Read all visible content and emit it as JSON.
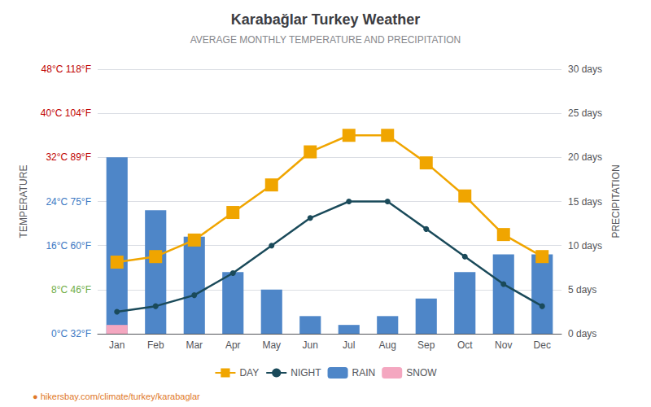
{
  "chart_data": {
    "type": "combo",
    "title": "Karabağlar Turkey Weather",
    "subtitle": "AVERAGE MONTHLY TEMPERATURE AND PRECIPITATION",
    "categories": [
      "Jan",
      "Feb",
      "Mar",
      "Apr",
      "May",
      "Jun",
      "Jul",
      "Aug",
      "Sep",
      "Oct",
      "Nov",
      "Dec"
    ],
    "series": [
      {
        "name": "DAY",
        "type": "line",
        "marker": "star",
        "color": "#f0a500",
        "values": [
          13,
          14,
          17,
          22,
          27,
          33,
          36,
          36,
          31,
          25,
          18,
          14
        ]
      },
      {
        "name": "NIGHT",
        "type": "line",
        "marker": "circle",
        "color": "#1a4a5a",
        "values": [
          4,
          5,
          7,
          11,
          16,
          21,
          24,
          24,
          19,
          14,
          9,
          5
        ]
      },
      {
        "name": "RAIN",
        "type": "bar",
        "axis": "y2",
        "color": "#4e86c8",
        "values": [
          20,
          14,
          11,
          7,
          5,
          2,
          1,
          2,
          4,
          7,
          9,
          9
        ]
      },
      {
        "name": "SNOW",
        "type": "bar",
        "axis": "y2",
        "color": "#f4a7c0",
        "values": [
          1,
          0,
          0,
          0,
          0,
          0,
          0,
          0,
          0,
          0,
          0,
          0
        ]
      }
    ],
    "ylabel": "TEMPERATURE",
    "y2label": "PRECIPITATION",
    "ylim": [
      0,
      48
    ],
    "yticks": [
      {
        "value": 0,
        "label": "0°C 32°F",
        "color": "#3b78c3"
      },
      {
        "value": 8,
        "label": "8°C 46°F",
        "color": "#70ad47"
      },
      {
        "value": 16,
        "label": "16°C 60°F",
        "color": "#3b78c3"
      },
      {
        "value": 24,
        "label": "24°C 75°F",
        "color": "#3b78c3"
      },
      {
        "value": 32,
        "label": "32°C 89°F",
        "color": "#c00000"
      },
      {
        "value": 40,
        "label": "40°C 104°F",
        "color": "#c00000"
      },
      {
        "value": 48,
        "label": "48°C 118°F",
        "color": "#c00000"
      }
    ],
    "y2lim": [
      0,
      30
    ],
    "y2ticks": [
      {
        "value": 0,
        "label": "0 days"
      },
      {
        "value": 5,
        "label": "5 days"
      },
      {
        "value": 10,
        "label": "10 days"
      },
      {
        "value": 15,
        "label": "15 days"
      },
      {
        "value": 20,
        "label": "20 days"
      },
      {
        "value": 25,
        "label": "25 days"
      },
      {
        "value": 30,
        "label": "30 days"
      }
    ],
    "grid": true,
    "legend": "bottom",
    "annotations": [
      "● hikersbay.com/climate/turkey/karabaglar"
    ]
  }
}
